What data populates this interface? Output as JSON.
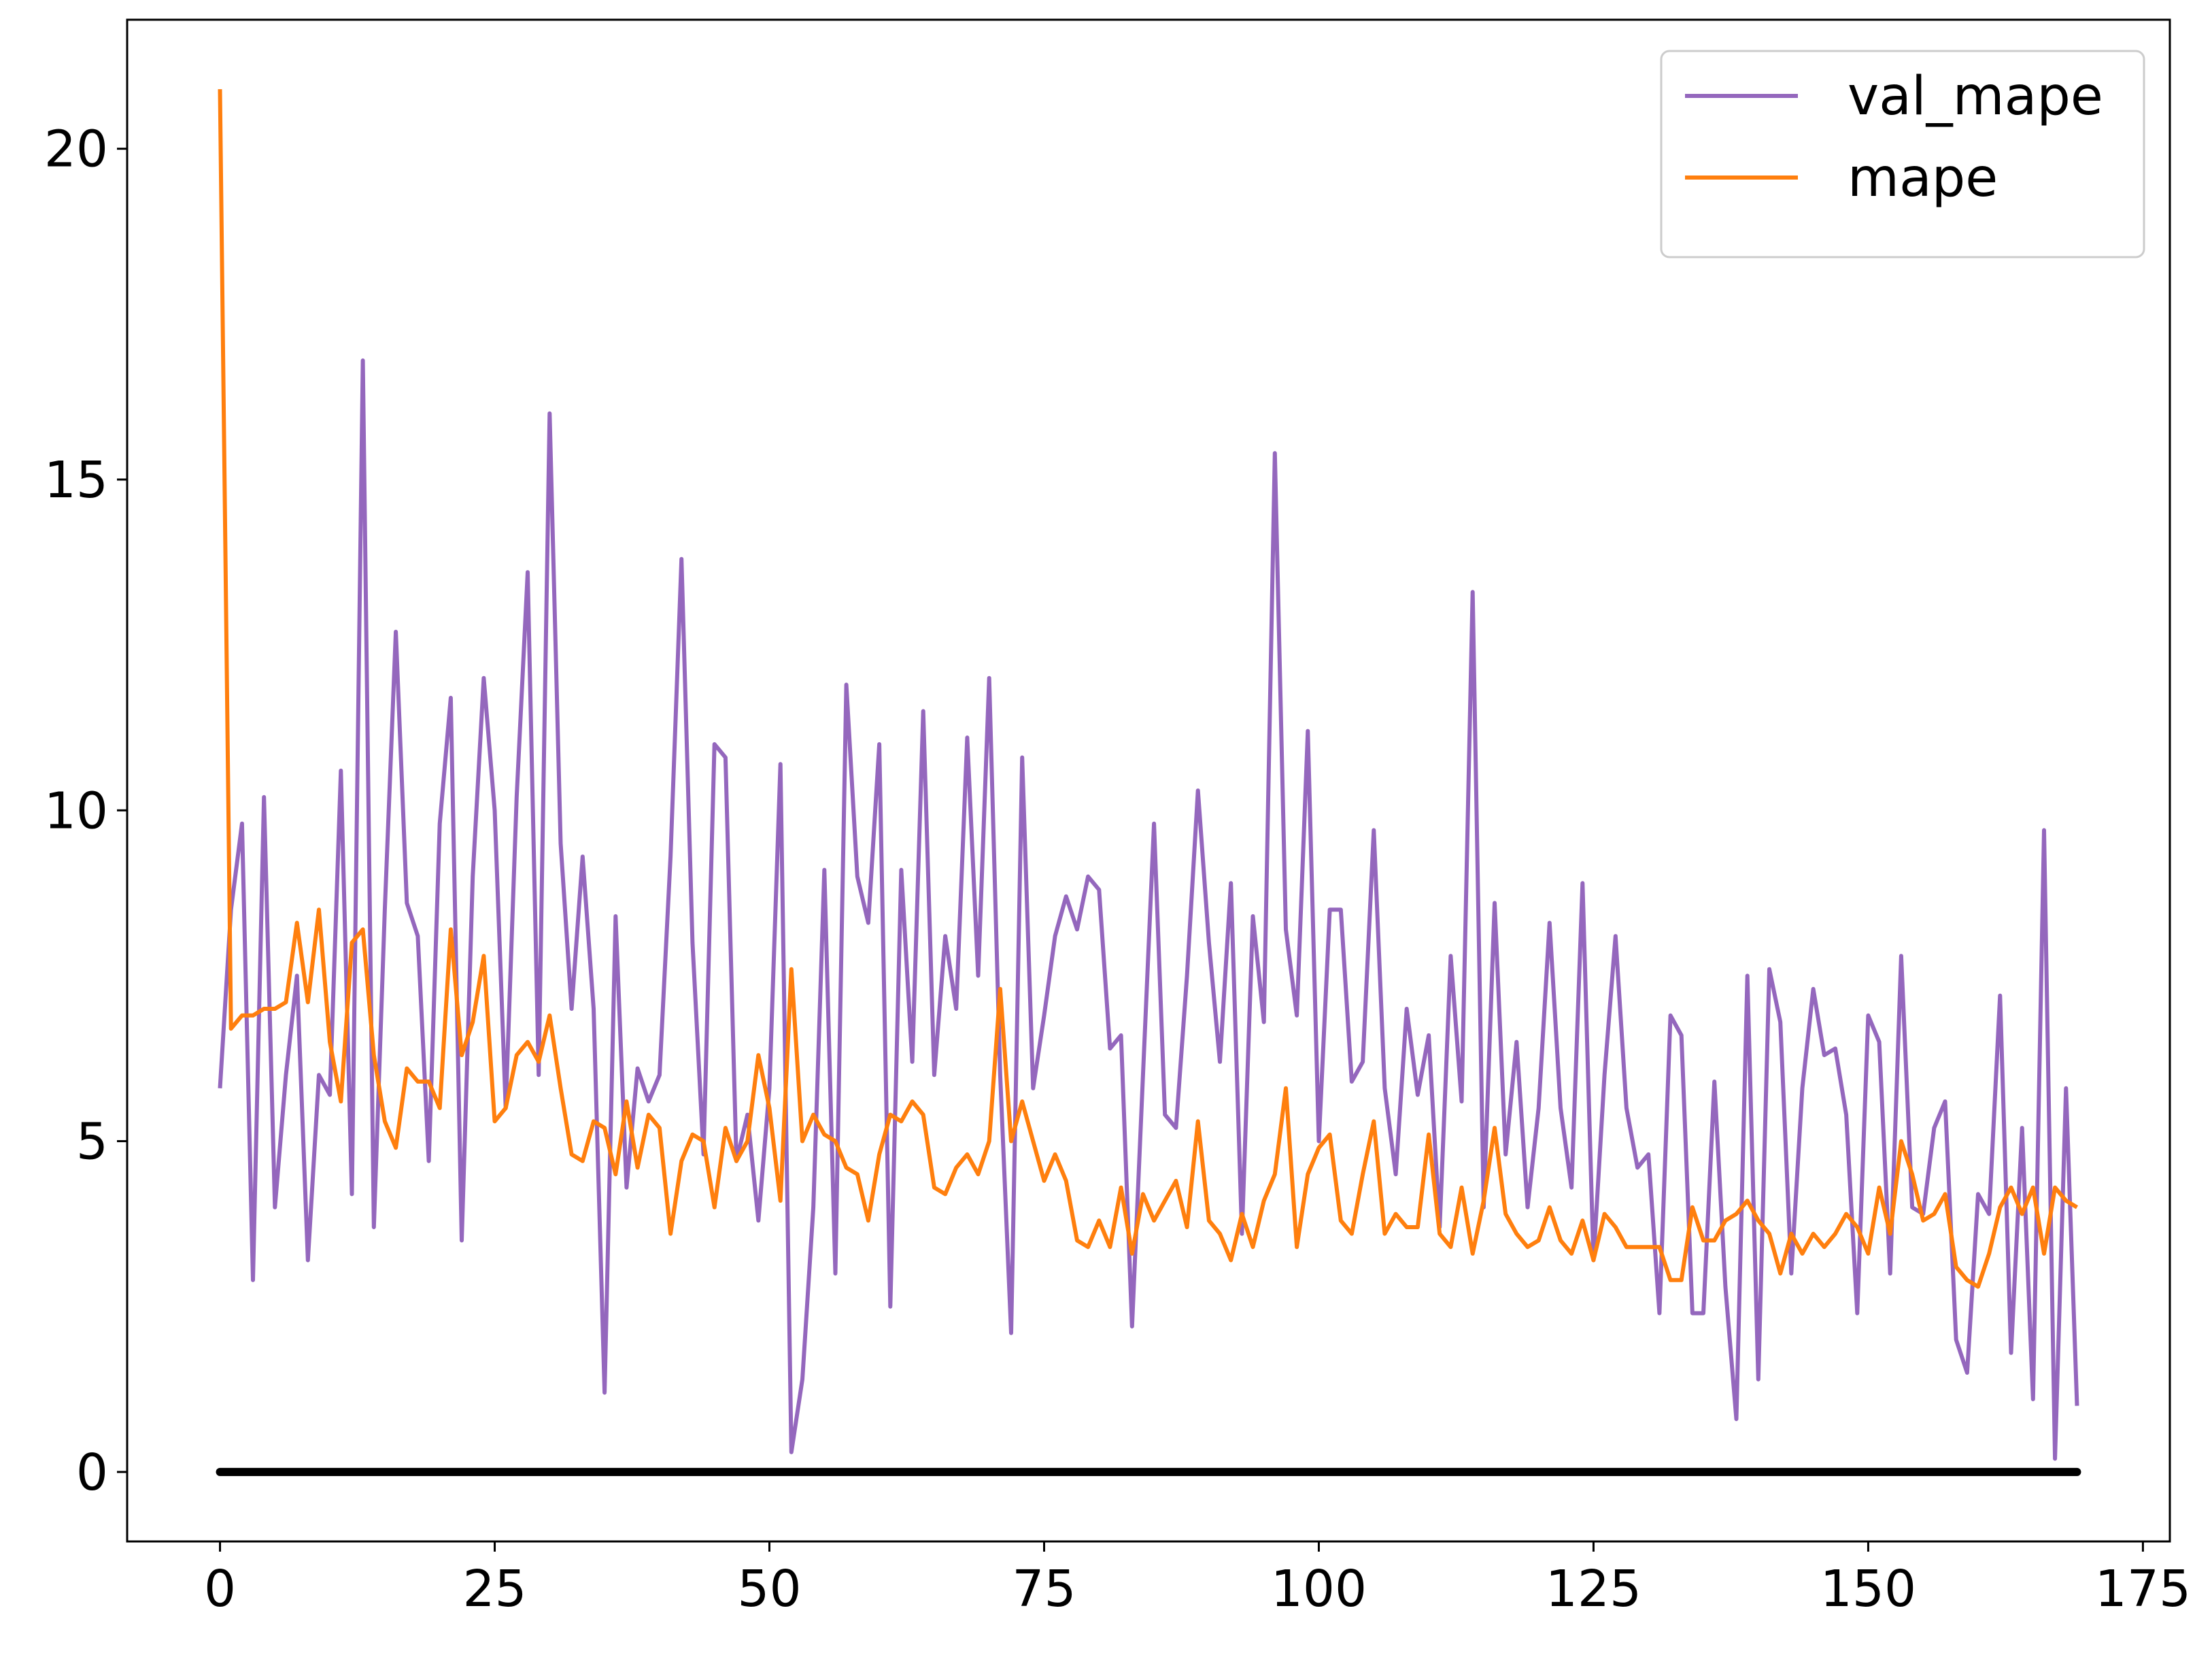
{
  "chart_data": {
    "type": "line",
    "x": [
      0,
      1,
      2,
      3,
      4,
      5,
      6,
      7,
      8,
      9,
      10,
      11,
      12,
      13,
      14,
      15,
      16,
      17,
      18,
      19,
      20,
      21,
      22,
      23,
      24,
      25,
      26,
      27,
      28,
      29,
      30,
      31,
      32,
      33,
      34,
      35,
      36,
      37,
      38,
      39,
      40,
      41,
      42,
      43,
      44,
      45,
      46,
      47,
      48,
      49,
      50,
      51,
      52,
      53,
      54,
      55,
      56,
      57,
      58,
      59,
      60,
      61,
      62,
      63,
      64,
      65,
      66,
      67,
      68,
      69,
      70,
      71,
      72,
      73,
      74,
      75,
      76,
      77,
      78,
      79,
      80,
      81,
      82,
      83,
      84,
      85,
      86,
      87,
      88,
      89,
      90,
      91,
      92,
      93,
      94,
      95,
      96,
      97,
      98,
      99,
      100,
      101,
      102,
      103,
      104,
      105,
      106,
      107,
      108,
      109,
      110,
      111,
      112,
      113,
      114,
      115,
      116,
      117,
      118,
      119,
      120,
      121,
      122,
      123,
      124,
      125,
      126,
      127,
      128,
      129,
      130,
      131,
      132,
      133,
      134,
      135,
      136,
      137,
      138,
      139,
      140,
      141,
      142,
      143,
      144,
      145,
      146,
      147,
      148,
      149,
      150,
      151,
      152,
      153,
      154,
      155,
      156,
      157,
      158,
      159,
      160,
      161,
      162,
      163,
      164,
      165,
      166,
      167,
      168,
      169
    ],
    "series": [
      {
        "name": "val_mape",
        "color": "#9467bd",
        "values": [
          5.8,
          8.5,
          9.8,
          2.9,
          10.2,
          4.0,
          6.0,
          7.5,
          3.2,
          6.0,
          5.7,
          10.6,
          4.2,
          16.8,
          3.7,
          8.5,
          12.7,
          8.6,
          8.1,
          4.7,
          9.8,
          11.7,
          3.5,
          9.0,
          12.0,
          10.0,
          5.5,
          10.2,
          13.6,
          6.0,
          16.0,
          9.5,
          7.0,
          9.3,
          7.0,
          1.2,
          8.4,
          4.3,
          6.1,
          5.6,
          6.0,
          9.3,
          13.8,
          8.0,
          4.8,
          11.0,
          10.8,
          4.7,
          5.4,
          3.8,
          5.8,
          10.7,
          0.3,
          1.4,
          4.0,
          9.1,
          3.0,
          11.9,
          9.0,
          8.3,
          11.0,
          2.5,
          9.1,
          6.2,
          11.5,
          6.0,
          8.1,
          7.0,
          11.1,
          7.5,
          12.0,
          6.0,
          2.1,
          10.8,
          5.8,
          6.9,
          8.1,
          8.7,
          8.2,
          9.0,
          8.8,
          6.4,
          6.6,
          2.2,
          6.0,
          9.8,
          5.4,
          5.2,
          7.5,
          10.3,
          8.0,
          6.2,
          8.9,
          3.6,
          8.4,
          6.8,
          15.4,
          8.2,
          6.9,
          11.2,
          5.0,
          8.5,
          8.5,
          5.9,
          6.2,
          9.7,
          5.8,
          4.5,
          7.0,
          5.7,
          6.6,
          3.7,
          7.8,
          5.6,
          13.3,
          4.0,
          8.6,
          4.8,
          6.5,
          4.0,
          5.5,
          8.3,
          5.5,
          4.3,
          8.9,
          3.2,
          6.0,
          8.1,
          5.5,
          4.6,
          4.8,
          2.4,
          6.9,
          6.6,
          2.4,
          2.4,
          5.9,
          2.8,
          0.8,
          7.5,
          1.4,
          7.6,
          6.8,
          3.0,
          5.8,
          7.3,
          6.3,
          6.4,
          5.4,
          2.4,
          6.9,
          6.5,
          3.0,
          7.8,
          4.0,
          3.9,
          5.2,
          5.6,
          2.0,
          1.5,
          4.2,
          3.9,
          7.2,
          1.8,
          5.2,
          1.1,
          9.7,
          0.2,
          5.8,
          1.0
        ]
      },
      {
        "name": "mape",
        "color": "#ff7f0e",
        "values": [
          20.9,
          6.7,
          6.9,
          6.9,
          7.0,
          7.0,
          7.1,
          8.3,
          7.1,
          8.5,
          6.5,
          5.6,
          8.0,
          8.2,
          6.3,
          5.3,
          4.9,
          6.1,
          5.9,
          5.9,
          5.5,
          8.2,
          6.3,
          6.8,
          7.8,
          5.3,
          5.5,
          6.3,
          6.5,
          6.2,
          6.9,
          5.8,
          4.8,
          4.7,
          5.3,
          5.2,
          4.5,
          5.6,
          4.6,
          5.4,
          5.2,
          3.6,
          4.7,
          5.1,
          5.0,
          4.0,
          5.2,
          4.7,
          5.0,
          6.3,
          5.5,
          4.1,
          7.6,
          5.0,
          5.4,
          5.1,
          5.0,
          4.6,
          4.5,
          3.8,
          4.8,
          5.4,
          5.3,
          5.6,
          5.4,
          4.3,
          4.2,
          4.6,
          4.8,
          4.5,
          5.0,
          7.3,
          5.0,
          5.6,
          5.0,
          4.4,
          4.8,
          4.4,
          3.5,
          3.4,
          3.8,
          3.4,
          4.3,
          3.3,
          4.2,
          3.8,
          4.1,
          4.4,
          3.7,
          5.3,
          3.8,
          3.6,
          3.2,
          3.9,
          3.4,
          4.1,
          4.5,
          5.8,
          3.4,
          4.5,
          4.9,
          5.1,
          3.8,
          3.6,
          4.5,
          5.3,
          3.6,
          3.9,
          3.7,
          3.7,
          5.1,
          3.6,
          3.4,
          4.3,
          3.3,
          4.1,
          5.2,
          3.9,
          3.6,
          3.4,
          3.5,
          4.0,
          3.5,
          3.3,
          3.8,
          3.2,
          3.9,
          3.7,
          3.4,
          3.4,
          3.4,
          3.4,
          2.9,
          2.9,
          4.0,
          3.5,
          3.5,
          3.8,
          3.9,
          4.1,
          3.8,
          3.6,
          3.0,
          3.6,
          3.3,
          3.6,
          3.4,
          3.6,
          3.9,
          3.7,
          3.3,
          4.3,
          3.6,
          5.0,
          4.5,
          3.8,
          3.9,
          4.2,
          3.1,
          2.9,
          2.8,
          3.3,
          4.0,
          4.3,
          3.9,
          4.3,
          3.3,
          4.3,
          4.1,
          4.0
        ]
      }
    ],
    "baseline": {
      "y": 0,
      "x": [
        0,
        169
      ],
      "color": "#000000"
    },
    "xlim": [
      -8.45,
      177.45
    ],
    "xticks": [
      0,
      25,
      50,
      75,
      100,
      125,
      150,
      175
    ],
    "ylim": [
      -1.05,
      21.95
    ],
    "yticks": [
      0,
      5,
      10,
      15,
      20
    ],
    "legend": "upper right",
    "grid": false
  }
}
